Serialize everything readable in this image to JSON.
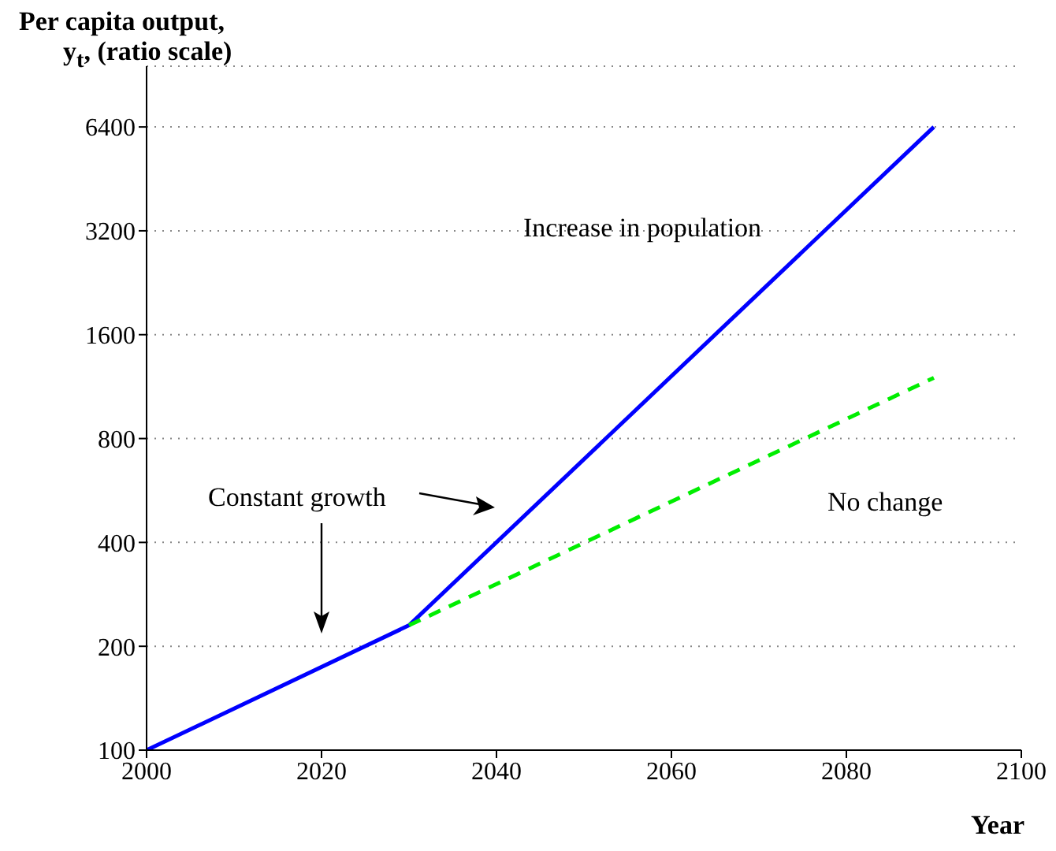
{
  "chart_data": {
    "type": "line",
    "xlabel": "Year",
    "ylabel": "Per capita output, y$_{t}$, (ratio scale)",
    "xlim": [
      2000,
      2100
    ],
    "xticks": [
      2000,
      2020,
      2040,
      2060,
      2080,
      2100
    ],
    "ylim": [
      100,
      9600
    ],
    "yticks": [
      100,
      200,
      400,
      800,
      1600,
      3200,
      6400
    ],
    "log": "y",
    "grid": "y",
    "marker": "none",
    "series": [
      {
        "color": "#0000ff",
        "x": [
          2000,
          2030,
          2090
        ],
        "values": [
          100,
          230,
          6400
        ],
        "line_style": "solid"
      },
      {
        "color": "#00ee00",
        "x": [
          2030,
          2090
        ],
        "values": [
          230,
          1200
        ],
        "line_style": "dashed"
      }
    ],
    "annotations": [
      "Increase in population",
      "Constant growth",
      "No change"
    ]
  }
}
